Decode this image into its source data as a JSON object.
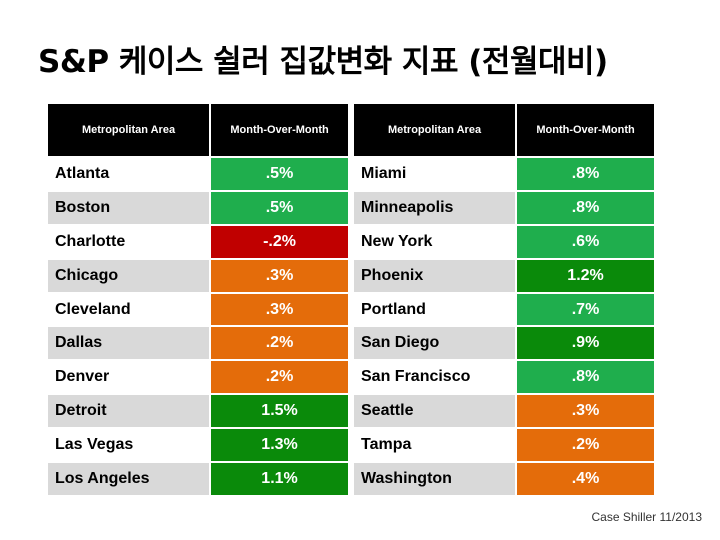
{
  "title": "S&P 케이스 쉴러 집값변화 지표 (전월대비)",
  "source": "Case Shiller 11/2013",
  "colors": {
    "header_bg": "#000000",
    "negative": "#c00000",
    "low_positive": "#e46c0a",
    "mid_positive": "#1fae4d",
    "high_positive": "#0a8a0a"
  },
  "chart_data": {
    "type": "table",
    "columns": [
      "Metropolitan Area",
      "Month-Over-Month"
    ],
    "left": [
      {
        "area": "Atlanta",
        "value": ".5%",
        "num": 0.5
      },
      {
        "area": "Boston",
        "value": ".5%",
        "num": 0.5
      },
      {
        "area": "Charlotte",
        "value": "-.2%",
        "num": -0.2
      },
      {
        "area": "Chicago",
        "value": ".3%",
        "num": 0.3
      },
      {
        "area": "Cleveland",
        "value": ".3%",
        "num": 0.3
      },
      {
        "area": "Dallas",
        "value": ".2%",
        "num": 0.2
      },
      {
        "area": "Denver",
        "value": ".2%",
        "num": 0.2
      },
      {
        "area": "Detroit",
        "value": "1.5%",
        "num": 1.5
      },
      {
        "area": "Las Vegas",
        "value": "1.3%",
        "num": 1.3
      },
      {
        "area": "Los Angeles",
        "value": "1.1%",
        "num": 1.1
      }
    ],
    "right": [
      {
        "area": "Miami",
        "value": ".8%",
        "num": 0.8
      },
      {
        "area": "Minneapolis",
        "value": ".8%",
        "num": 0.8
      },
      {
        "area": "New York",
        "value": ".6%",
        "num": 0.6
      },
      {
        "area": "Phoenix",
        "value": "1.2%",
        "num": 1.2
      },
      {
        "area": "Portland",
        "value": ".7%",
        "num": 0.7
      },
      {
        "area": "San Diego",
        "value": ".9%",
        "num": 0.9
      },
      {
        "area": "San Francisco",
        "value": ".8%",
        "num": 0.8
      },
      {
        "area": "Seattle",
        "value": ".3%",
        "num": 0.3
      },
      {
        "area": "Tampa",
        "value": ".2%",
        "num": 0.2
      },
      {
        "area": "Washington",
        "value": ".4%",
        "num": 0.4
      }
    ]
  }
}
